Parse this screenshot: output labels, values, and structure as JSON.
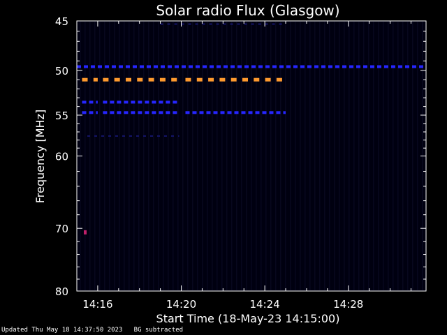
{
  "chart_data": {
    "type": "heatmap",
    "title": "Solar radio Flux (Glasgow)",
    "xlabel": "Start Time (18-May-23 14:15:00)",
    "ylabel": "Frequency [MHz]",
    "x_range_minutes": [
      14.87,
      15.07
    ],
    "x_ticks": [
      {
        "minute": 16,
        "label": "14:16"
      },
      {
        "minute": 20,
        "label": "14:20"
      },
      {
        "minute": 24,
        "label": "14:24"
      },
      {
        "minute": 28,
        "label": "14:28"
      }
    ],
    "y_scale": "log",
    "y_range": [
      45,
      80
    ],
    "y_ticks": [
      45,
      50,
      55,
      60,
      70,
      80
    ],
    "grid": false,
    "colors": {
      "background": "#000000",
      "plot_area": "#000010",
      "strong": "#ff9a2e",
      "medium": "#2626ff",
      "weak": "#15156a",
      "spot": "#c0206a"
    },
    "emission_bands": [
      {
        "freq_mhz": 49.6,
        "start_min": 15.0,
        "end_min": 31.6,
        "level": "medium"
      },
      {
        "freq_mhz": 51.0,
        "start_min": 15.25,
        "end_min": 16.0,
        "level": "strong"
      },
      {
        "freq_mhz": 51.0,
        "start_min": 16.25,
        "end_min": 19.9,
        "level": "strong"
      },
      {
        "freq_mhz": 51.0,
        "start_min": 20.2,
        "end_min": 25.0,
        "level": "strong"
      },
      {
        "freq_mhz": 53.5,
        "start_min": 15.25,
        "end_min": 16.0,
        "level": "medium"
      },
      {
        "freq_mhz": 53.5,
        "start_min": 16.25,
        "end_min": 19.9,
        "level": "medium"
      },
      {
        "freq_mhz": 54.7,
        "start_min": 15.25,
        "end_min": 16.0,
        "level": "medium"
      },
      {
        "freq_mhz": 54.7,
        "start_min": 16.25,
        "end_min": 19.9,
        "level": "medium"
      },
      {
        "freq_mhz": 54.7,
        "start_min": 20.2,
        "end_min": 25.0,
        "level": "medium"
      },
      {
        "freq_mhz": 45.3,
        "start_min": 19.0,
        "end_min": 25.0,
        "level": "weak"
      },
      {
        "freq_mhz": 57.5,
        "start_min": 15.5,
        "end_min": 19.9,
        "level": "weak"
      }
    ],
    "spots": [
      {
        "freq_mhz": 70.6,
        "minute": 15.4,
        "level": "spot"
      }
    ]
  },
  "footer": {
    "updated": "Updated Thu May 18 14:37:50 2023",
    "note": "BG subtracted"
  }
}
